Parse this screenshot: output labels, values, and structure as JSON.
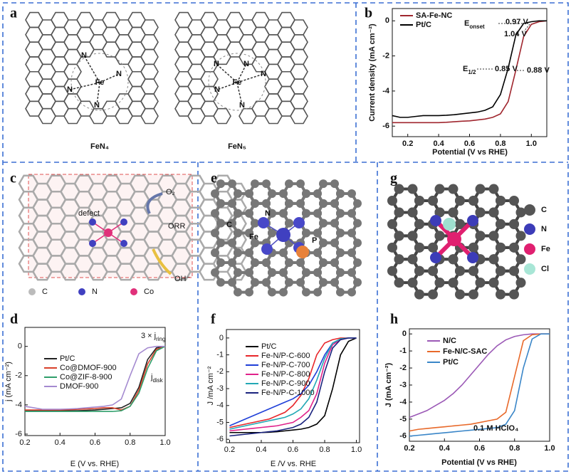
{
  "figure": {
    "a": {
      "panel": "a",
      "structures": [
        {
          "label": "FeN₄",
          "atoms": [
            "N",
            "N",
            "N",
            "N",
            "Fe"
          ]
        },
        {
          "label": "FeN₅",
          "atoms": [
            "N",
            "N",
            "N",
            "N",
            "N",
            "Fe"
          ]
        }
      ]
    },
    "c": {
      "panel": "c",
      "texts": [
        "defect",
        "O₂",
        "ORR",
        "OH⁻"
      ],
      "legend": [
        "C",
        "N",
        "Co"
      ]
    },
    "e": {
      "panel": "e",
      "atoms": [
        "C",
        "N",
        "Fe",
        "P"
      ]
    },
    "g": {
      "panel": "g",
      "legend": [
        "C",
        "N",
        "Fe",
        "Cl"
      ]
    }
  },
  "chart_data": [
    {
      "type": "line",
      "panel": "b",
      "xlabel": "Potential (V vs RHE)",
      "ylabel": "Current density (mA cm⁻²)",
      "x": [
        0.1,
        0.15,
        0.2,
        0.25,
        0.3,
        0.35,
        0.4,
        0.45,
        0.5,
        0.55,
        0.6,
        0.65,
        0.7,
        0.75,
        0.8,
        0.85,
        0.9,
        0.95,
        1.0,
        1.05,
        1.1
      ],
      "series": [
        {
          "name": "SA-Fe-NC",
          "color": "#a0262e",
          "values": [
            -5.8,
            -5.8,
            -5.8,
            -5.8,
            -5.8,
            -5.8,
            -5.8,
            -5.78,
            -5.75,
            -5.72,
            -5.7,
            -5.65,
            -5.6,
            -5.5,
            -5.3,
            -4.6,
            -2.8,
            -0.9,
            -0.2,
            -0.05,
            0
          ]
        },
        {
          "name": "Pt/C",
          "color": "#000000",
          "values": [
            -5.4,
            -5.5,
            -5.5,
            -5.45,
            -5.4,
            -5.4,
            -5.4,
            -5.38,
            -5.35,
            -5.3,
            -5.25,
            -5.2,
            -5.1,
            -4.9,
            -4.2,
            -2.7,
            -0.8,
            -0.15,
            -0.05,
            0,
            0
          ]
        }
      ],
      "xlim": [
        0.1,
        1.1
      ],
      "ylim": [
        -6.6,
        0.7
      ],
      "xticks": [
        0.2,
        0.4,
        0.6,
        0.8,
        {
          "value": 1,
          "label": "1.0"
        }
      ],
      "yticks": [
        -6,
        -4,
        -2,
        0
      ],
      "annotations": [
        {
          "text": "E",
          "sub": "onset"
        },
        "0.97 V",
        "1.04 V",
        {
          "text": "E",
          "sub": "1/2"
        },
        "0.85 V",
        "0.88 V"
      ]
    },
    {
      "type": "line",
      "panel": "d",
      "xlabel": "E (V vs. RHE)",
      "ylabel": "j (mA cm⁻²)",
      "x": [
        0.2,
        0.25,
        0.3,
        0.35,
        0.4,
        0.45,
        0.5,
        0.55,
        0.6,
        0.65,
        0.7,
        0.75,
        0.8,
        0.85,
        0.9,
        0.95,
        1.0
      ],
      "series": [
        {
          "name": "Pt/C",
          "color": "#222222",
          "values": [
            -4.4,
            -4.4,
            -4.4,
            -4.4,
            -4.4,
            -4.4,
            -4.4,
            -4.38,
            -4.35,
            -4.3,
            -4.25,
            -4.2,
            -3.9,
            -2.8,
            -0.9,
            -0.1,
            0
          ]
        },
        {
          "name": "Co@DMOF-900",
          "color": "#d9412b",
          "values": [
            -4.35,
            -4.35,
            -4.35,
            -4.35,
            -4.35,
            -4.33,
            -4.3,
            -4.28,
            -4.25,
            -4.2,
            -4.2,
            -4.35,
            -4.1,
            -3.0,
            -1.2,
            -0.2,
            0
          ]
        },
        {
          "name": "Co@ZIF-8-900",
          "color": "#2e9e6a",
          "values": [
            -4.45,
            -4.45,
            -4.45,
            -4.45,
            -4.45,
            -4.45,
            -4.45,
            -4.45,
            -4.45,
            -4.45,
            -4.45,
            -4.4,
            -4.1,
            -3.2,
            -1.5,
            -0.3,
            0
          ]
        },
        {
          "name": "DMOF-900",
          "color": "#a48ad0",
          "values": [
            -4.1,
            -4.2,
            -4.3,
            -4.3,
            -4.3,
            -4.28,
            -4.25,
            -4.2,
            -4.15,
            -4.1,
            -4.0,
            -3.6,
            -2.0,
            -0.5,
            -0.1,
            0,
            0
          ]
        }
      ],
      "xlim": [
        0.2,
        1.0
      ],
      "ylim": [
        -6.1,
        1.3
      ],
      "xticks": [
        0.2,
        0.4,
        0.6,
        0.8,
        {
          "value": 1,
          "label": "1.0"
        }
      ],
      "yticks": [
        0,
        -2,
        -4,
        -6
      ],
      "annotations": [
        {
          "text": "3 × j",
          "sub": "ring"
        },
        {
          "text": "j",
          "sub": "disk"
        }
      ]
    },
    {
      "type": "line",
      "panel": "f",
      "xlabel": "E /V vs. RHE",
      "ylabel": "J /mA cm⁻²",
      "x": [
        0.2,
        0.25,
        0.3,
        0.35,
        0.4,
        0.45,
        0.5,
        0.55,
        0.6,
        0.65,
        0.7,
        0.75,
        0.8,
        0.85,
        0.9,
        0.95,
        1.0
      ],
      "series": [
        {
          "name": "Pt/C",
          "color": "#000000",
          "values": [
            -5.6,
            -5.6,
            -5.6,
            -5.6,
            -5.6,
            -5.58,
            -5.55,
            -5.5,
            -5.45,
            -5.4,
            -5.3,
            -5.1,
            -4.6,
            -3.0,
            -1.0,
            -0.2,
            0
          ]
        },
        {
          "name": "Fe-N/P-C-600",
          "color": "#e8262a",
          "values": [
            -5.3,
            -5.2,
            -5.1,
            -5.0,
            -4.9,
            -4.8,
            -4.6,
            -4.4,
            -4.0,
            -3.4,
            -2.4,
            -1.0,
            -0.3,
            -0.1,
            0,
            0,
            0
          ]
        },
        {
          "name": "Fe-N/P-C-700",
          "color": "#1f3fd8",
          "values": [
            -5.2,
            -5.0,
            -4.8,
            -4.6,
            -4.4,
            -4.2,
            -4.0,
            -3.8,
            -3.6,
            -3.3,
            -2.8,
            -2.0,
            -1.0,
            -0.3,
            -0.1,
            0,
            0
          ]
        },
        {
          "name": "Fe-N/P-C-800",
          "color": "#e0218a",
          "values": [
            -5.5,
            -5.45,
            -5.4,
            -5.35,
            -5.3,
            -5.25,
            -5.2,
            -5.1,
            -5.0,
            -4.7,
            -4.3,
            -3.3,
            -1.5,
            -0.4,
            -0.1,
            0,
            0
          ]
        },
        {
          "name": "Fe-N/P-C-900",
          "color": "#22a8b5",
          "values": [
            -5.4,
            -5.3,
            -5.2,
            -5.1,
            -5.0,
            -4.9,
            -4.8,
            -4.7,
            -4.5,
            -4.2,
            -3.6,
            -2.5,
            -1.2,
            -0.3,
            -0.05,
            0,
            0
          ]
        },
        {
          "name": "Fe-N/P-C-1000",
          "color": "#1a237e",
          "values": [
            -5.8,
            -5.75,
            -5.7,
            -5.65,
            -5.6,
            -5.55,
            -5.5,
            -5.4,
            -5.3,
            -5.1,
            -4.7,
            -3.8,
            -2.0,
            -0.6,
            -0.1,
            0,
            0
          ]
        }
      ],
      "xlim": [
        0.18,
        1.02
      ],
      "ylim": [
        -6.2,
        0.5
      ],
      "xticks": [
        0.2,
        0.4,
        0.6,
        0.8,
        {
          "value": 1,
          "label": "1.0"
        }
      ],
      "yticks": [
        -6,
        -5,
        -4,
        -3,
        -2,
        -1,
        0
      ]
    },
    {
      "type": "line",
      "panel": "h",
      "xlabel": "Potential (V vs RHE)",
      "ylabel": "J (mA cm⁻²)",
      "x": [
        0.2,
        0.25,
        0.3,
        0.35,
        0.4,
        0.45,
        0.5,
        0.55,
        0.6,
        0.65,
        0.7,
        0.75,
        0.8,
        0.85,
        0.9,
        0.95,
        1.0
      ],
      "series": [
        {
          "name": "N/C",
          "color": "#9b59b6",
          "values": [
            -4.9,
            -4.7,
            -4.5,
            -4.2,
            -3.9,
            -3.5,
            -3.0,
            -2.4,
            -1.8,
            -1.2,
            -0.7,
            -0.35,
            -0.15,
            -0.05,
            0,
            0,
            0
          ]
        },
        {
          "name": "Fe-N/C-SAC",
          "color": "#e8692a",
          "values": [
            -5.7,
            -5.6,
            -5.55,
            -5.5,
            -5.45,
            -5.4,
            -5.35,
            -5.3,
            -5.2,
            -5.1,
            -5.0,
            -4.6,
            -2.5,
            -0.4,
            -0.05,
            0,
            0
          ]
        },
        {
          "name": "Pt/C",
          "color": "#3a86c8",
          "values": [
            -6.0,
            -5.95,
            -5.9,
            -5.85,
            -5.8,
            -5.75,
            -5.7,
            -5.65,
            -5.6,
            -5.55,
            -5.5,
            -5.3,
            -4.5,
            -2.0,
            -0.3,
            0,
            0
          ]
        }
      ],
      "xlim": [
        0.2,
        1.0
      ],
      "ylim": [
        -6.3,
        0.3
      ],
      "xticks": [
        0.2,
        0.4,
        0.6,
        0.8,
        {
          "value": 1,
          "label": "1.0"
        }
      ],
      "yticks": [
        0,
        -1,
        -2,
        -3,
        -4,
        -5,
        -6
      ],
      "annotations": [
        "0.1 M HClO₄"
      ]
    }
  ]
}
